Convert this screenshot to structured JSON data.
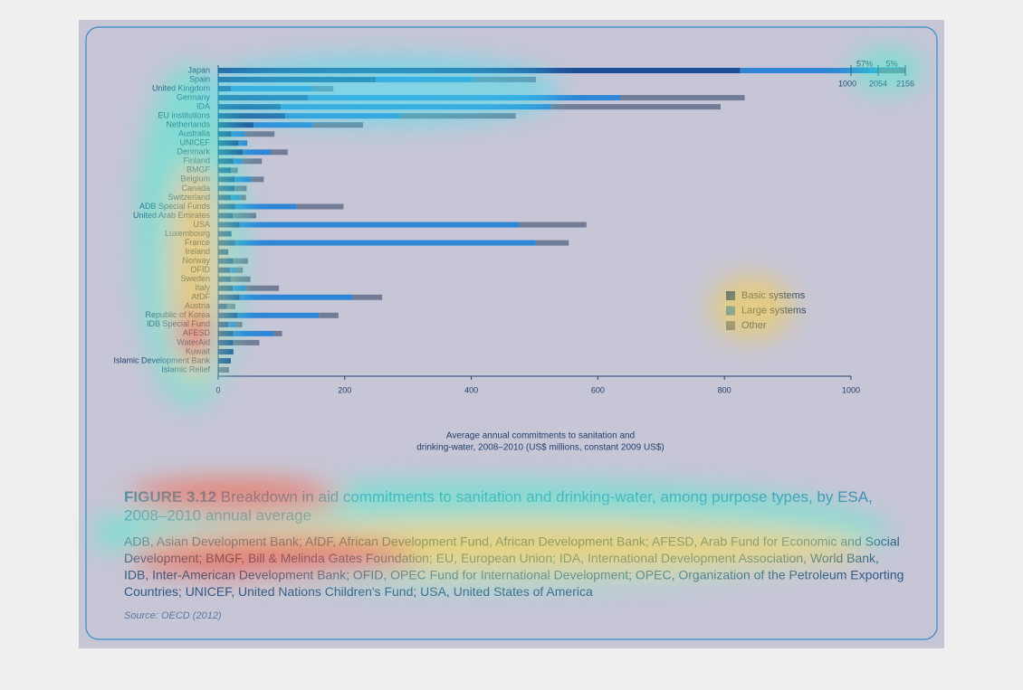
{
  "chart_data": {
    "type": "bar",
    "orientation": "horizontal",
    "stacked": true,
    "categories": [
      "Japan",
      "Spain",
      "United Kingdom",
      "Germany",
      "IDA",
      "EU institutions",
      "Netherlands",
      "Australia",
      "UNICEF",
      "Denmark",
      "Finland",
      "BMGF",
      "Belgium",
      "Canada",
      "Switzerland",
      "ADB Special Funds",
      "United Arab Emirates",
      "USA",
      "Luxembourg",
      "France",
      "Ireland",
      "Norway",
      "OFID",
      "Sweden",
      "Italy",
      "AfDF",
      "Austria",
      "Republic of Korea",
      "IDB Special Fund",
      "AFESD",
      "WaterAid",
      "Kuwait",
      "Islamic Development Bank",
      "Islamic Relief"
    ],
    "series": [
      {
        "name": "Basic systems",
        "color": "#1f4f96",
        "values": [
          825,
          249,
          20,
          142,
          99,
          106,
          56,
          21,
          32,
          39,
          24,
          20,
          26,
          26,
          20,
          27,
          23,
          34,
          21,
          27,
          16,
          24,
          19,
          20,
          23,
          34,
          14,
          30,
          16,
          24,
          24,
          24,
          20,
          0
        ]
      },
      {
        "name": "Large systems",
        "color": "#2f86d6",
        "values": [
          1229,
          154,
          129,
          494,
          427,
          182,
          94,
          21,
          14,
          44,
          14,
          0,
          26,
          0,
          14,
          97,
          0,
          442,
          0,
          475,
          0,
          0,
          9,
          0,
          20,
          179,
          0,
          129,
          11,
          64,
          0,
          0,
          0,
          0
        ]
      },
      {
        "name": "Other",
        "color": "#727c96",
        "values": [
          102,
          99,
          33,
          196,
          268,
          182,
          79,
          47,
          0,
          27,
          31,
          11,
          20,
          19,
          10,
          74,
          37,
          106,
          0,
          52,
          0,
          23,
          11,
          31,
          53,
          46,
          13,
          31,
          11,
          13,
          41,
          0,
          0,
          17
        ]
      }
    ],
    "xlim": [
      0,
      1000
    ],
    "xticks": [
      0,
      200,
      400,
      600,
      800,
      1000
    ],
    "axis_break": {
      "ticks": [
        1000,
        2054,
        2156
      ],
      "labels": [
        "57%",
        "5%"
      ]
    },
    "xlabel_lines": [
      "Average annual commitments to sanitation and",
      "drinking-water, 2008–2010 (US$ millions, constant 2009 US$)"
    ],
    "legend": "center-right"
  },
  "caption": {
    "label": "FIGURE 3.12",
    "title_lines": [
      " Breakdown in aid commitments to sanitation and drinking-water, among purpose types, by ESA,",
      "2008–2010 annual average"
    ],
    "notes": [
      "ADB, Asian Development Bank; AfDF, African Development Fund, African Development Bank; AFESD, Arab Fund for Economic and Social",
      "Development; BMGF, Bill & Melinda Gates Foundation; EU, European Union; IDA, International Development Association, World Bank,",
      "IDB, Inter-American Development Bank; OFID, OPEC Fund for International Development; OPEC, Organization of the Petroleum Exporting",
      "Countries; UNICEF, United Nations Children's Fund; USA, United States of America"
    ],
    "source": "Source: OECD (2012)"
  }
}
